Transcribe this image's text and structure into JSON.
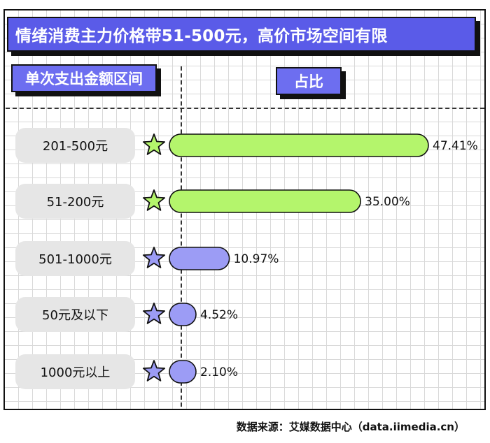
{
  "header": {
    "title": "情绪消费主力价格带51-500元，高价市场空间有限",
    "col_range": "单次支出金额区间",
    "col_share": "占比"
  },
  "chart_data": {
    "type": "bar",
    "orientation": "horizontal",
    "categories": [
      "201-500元",
      "51-200元",
      "501-1000元",
      "50元及以下",
      "1000元以上"
    ],
    "values": [
      47.41,
      35.0,
      10.97,
      4.52,
      2.1
    ],
    "value_labels": [
      "47.41%",
      "35.00%",
      "10.97%",
      "4.52%",
      "2.10%"
    ],
    "unit": "%",
    "highlight": [
      true,
      true,
      false,
      false,
      false
    ],
    "colors": {
      "highlight": "#b4f56c",
      "normal": "#9c9cf5",
      "outline": "#111111"
    },
    "title": "情绪消费主力价格带51-500元，高价市场空间有限",
    "grid": true
  },
  "icons": {
    "row_marker": "star-icon"
  },
  "footer": {
    "source": "数据来源：艾媒数据中心（data.iimedia.cn）"
  }
}
